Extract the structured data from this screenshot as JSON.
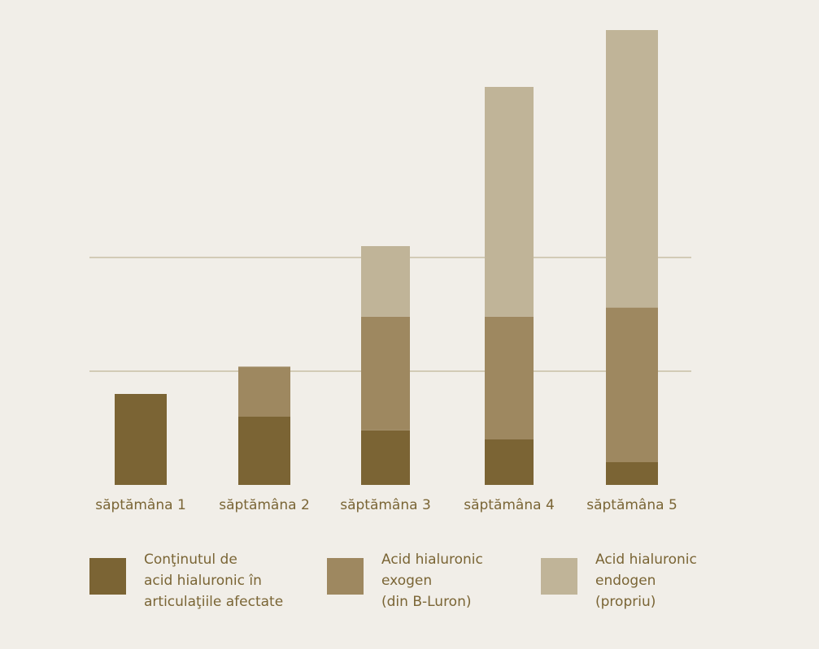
{
  "chart_data": {
    "type": "bar",
    "stacked": true,
    "categories": [
      "săptămâna 1",
      "săptămâna 2",
      "săptămâna 3",
      "săptămâna 4",
      "săptămâna 5"
    ],
    "series": [
      {
        "name": "Conținutul de acid hialuronic în articulațiile afectate",
        "values": [
          4.0,
          3.0,
          2.4,
          2.0,
          1.0
        ],
        "color": "#7b6434"
      },
      {
        "name": "Acid hialuronic exogen (din B-Luron)",
        "values": [
          0,
          2.2,
          5.0,
          5.4,
          6.8
        ],
        "color": "#9e8860"
      },
      {
        "name": "Acid hialuronic endogen (propriu)",
        "values": [
          0,
          0,
          3.1,
          10.1,
          12.2
        ],
        "color": "#c0b498"
      }
    ],
    "ylim": [
      0,
      20
    ],
    "gridlines": [
      5,
      10
    ],
    "title": "",
    "xlabel": "",
    "ylabel": ""
  },
  "legend": {
    "items": [
      {
        "lines": [
          "Conţinutul de",
          "acid hialuronic în",
          "articulaţiile afectate"
        ],
        "color": "#7b6434"
      },
      {
        "lines": [
          "Acid hialuronic",
          "exogen",
          "(din B-Luron)"
        ],
        "color": "#9e8860"
      },
      {
        "lines": [
          "Acid hialuronic",
          "endogen",
          "(propriu)"
        ],
        "color": "#c0b498"
      }
    ]
  },
  "colors": {
    "background": "#f1eee8",
    "gridline": "#c8bfa5",
    "text": "#7a6535"
  }
}
